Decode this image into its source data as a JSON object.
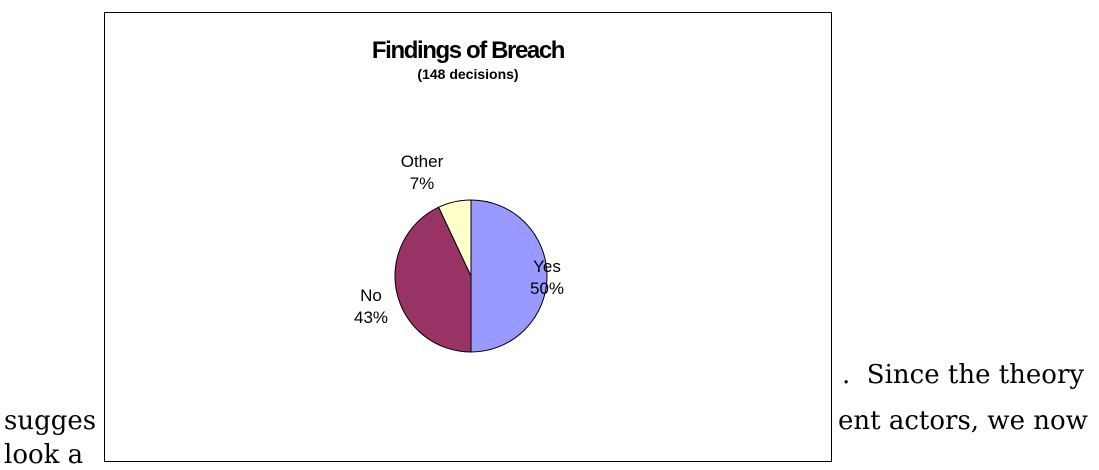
{
  "document": {
    "line1_tail": ".  Since the theory",
    "line2_head": "sugges",
    "line2_tail": "ent actors, we now",
    "line3_head": "look a"
  },
  "chart_data": {
    "type": "pie",
    "title": "Findings of Breach",
    "subtitle": "(148 decisions)",
    "slices": [
      {
        "label": "Yes",
        "value": 50,
        "value_label": "50%",
        "color": "#9999ff"
      },
      {
        "label": "No",
        "value": 43,
        "value_label": "43%",
        "color": "#993366"
      },
      {
        "label": "Other",
        "value": 7,
        "value_label": "7%",
        "color": "#ffffcc"
      }
    ],
    "start_angle_deg": 0,
    "direction": "clockwise",
    "legend": "none",
    "data_labels": "outside"
  }
}
